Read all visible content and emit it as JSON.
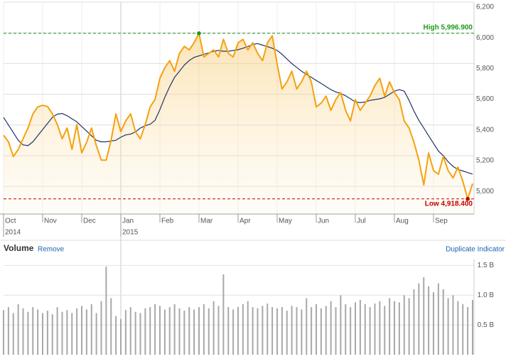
{
  "chart_data": [
    {
      "type": "line",
      "categories": [
        "Oct",
        null,
        null,
        null,
        null,
        null,
        null,
        null,
        "Nov",
        null,
        null,
        null,
        null,
        null,
        null,
        null,
        "Dec",
        null,
        null,
        null,
        null,
        null,
        null,
        null,
        "Jan",
        null,
        null,
        null,
        null,
        null,
        null,
        null,
        "Feb",
        null,
        null,
        null,
        null,
        null,
        null,
        null,
        "Mar",
        null,
        null,
        null,
        null,
        null,
        null,
        null,
        "Apr",
        null,
        null,
        null,
        null,
        null,
        null,
        null,
        "May",
        null,
        null,
        null,
        null,
        null,
        null,
        null,
        "Jun",
        null,
        null,
        null,
        null,
        null,
        null,
        null,
        "Jul",
        null,
        null,
        null,
        null,
        null,
        null,
        null,
        "Aug",
        null,
        null,
        null,
        null,
        null,
        null,
        null,
        "Sep",
        null,
        null,
        null,
        null,
        null,
        null,
        null,
        null
      ],
      "year_labels": [
        "2014",
        null,
        null,
        null,
        null,
        null,
        null,
        null,
        null,
        null,
        null,
        null,
        null,
        null,
        null,
        null,
        null,
        null,
        null,
        null,
        null,
        null,
        null,
        null,
        "2015",
        null,
        null,
        null,
        null,
        null,
        null,
        null,
        null,
        null,
        null,
        null,
        null,
        null,
        null,
        null,
        null,
        null,
        null,
        null,
        null,
        null,
        null,
        null,
        null,
        null,
        null,
        null,
        null,
        null,
        null,
        null,
        null,
        null,
        null,
        null,
        null,
        null,
        null,
        null,
        null,
        null,
        null,
        null,
        null,
        null,
        null,
        null,
        null,
        null,
        null,
        null,
        null,
        null,
        null,
        null,
        null,
        null,
        null,
        null,
        null,
        null,
        null,
        null,
        null,
        null,
        null,
        null,
        null,
        null,
        null,
        null,
        null
      ],
      "series": [
        {
          "color": "#f5a20f",
          "values": [
            5333,
            5290,
            5194,
            5240,
            5310,
            5380,
            5472,
            5518,
            5528,
            5520,
            5472,
            5403,
            5310,
            5380,
            5241,
            5403,
            5218,
            5287,
            5380,
            5264,
            5171,
            5171,
            5300,
            5472,
            5356,
            5426,
            5472,
            5356,
            5310,
            5403,
            5518,
            5565,
            5704,
            5773,
            5819,
            5750,
            5866,
            5912,
            5889,
            5935,
            5997,
            5843,
            5866,
            5889,
            5843,
            5958,
            5866,
            5843,
            5935,
            5958,
            5889,
            5935,
            5866,
            5819,
            5935,
            5981,
            5796,
            5634,
            5681,
            5750,
            5634,
            5681,
            5750,
            5681,
            5518,
            5542,
            5588,
            5495,
            5565,
            5611,
            5495,
            5426,
            5565,
            5495,
            5542,
            5588,
            5657,
            5704,
            5588,
            5681,
            5611,
            5565,
            5426,
            5380,
            5287,
            5171,
            5009,
            5218,
            5102,
            5079,
            5194,
            5102,
            5055,
            5125,
            5032,
            4918,
            5018
          ]
        },
        {
          "color": "#1f3566",
          "values": [
            5449,
            5400,
            5350,
            5300,
            5270,
            5265,
            5290,
            5330,
            5370,
            5410,
            5450,
            5470,
            5475,
            5460,
            5440,
            5420,
            5390,
            5360,
            5330,
            5300,
            5290,
            5290,
            5295,
            5300,
            5320,
            5335,
            5340,
            5355,
            5380,
            5395,
            5405,
            5430,
            5500,
            5580,
            5650,
            5710,
            5750,
            5790,
            5820,
            5840,
            5850,
            5860,
            5870,
            5880,
            5885,
            5880,
            5880,
            5885,
            5890,
            5900,
            5910,
            5925,
            5930,
            5920,
            5910,
            5900,
            5885,
            5860,
            5830,
            5800,
            5775,
            5750,
            5730,
            5710,
            5690,
            5670,
            5650,
            5630,
            5615,
            5605,
            5590,
            5570,
            5550,
            5545,
            5550,
            5560,
            5565,
            5570,
            5580,
            5600,
            5620,
            5630,
            5620,
            5560,
            5490,
            5430,
            5380,
            5330,
            5280,
            5230,
            5200,
            5160,
            5130,
            5110,
            5100,
            5090,
            5080
          ]
        }
      ],
      "ylim": [
        4820,
        6200
      ],
      "yticks": [
        {
          "value": 5000,
          "label": "5,000"
        },
        {
          "value": 5200,
          "label": "5,200"
        },
        {
          "value": 5400,
          "label": "5,400"
        },
        {
          "value": 5600,
          "label": "5,600"
        },
        {
          "value": 5800,
          "label": "5,800"
        },
        {
          "value": 6000,
          "label": "6,000"
        },
        {
          "value": 6200,
          "label": "6,200"
        }
      ],
      "high": {
        "value": 5996.9,
        "label": "High 5,996.900",
        "color": "#1a9b1a"
      },
      "low": {
        "value": 4918.4,
        "label": "Low 4,918.400",
        "color": "#c00000"
      },
      "grid": true
    },
    {
      "type": "bar",
      "title": "Volume",
      "actions": [
        "Remove",
        "Duplicate Indicator"
      ],
      "color": "#a8a8a8",
      "values": [
        0.75,
        0.8,
        0.7,
        0.85,
        0.78,
        0.72,
        0.8,
        0.76,
        0.7,
        0.74,
        0.68,
        0.8,
        0.72,
        0.75,
        0.7,
        0.78,
        0.82,
        0.76,
        0.85,
        0.7,
        0.9,
        1.48,
        0.95,
        0.65,
        0.6,
        0.75,
        0.8,
        0.72,
        0.7,
        0.78,
        0.8,
        0.85,
        0.82,
        0.76,
        0.8,
        0.85,
        0.78,
        0.74,
        0.8,
        0.76,
        0.8,
        0.85,
        0.78,
        0.9,
        0.82,
        1.35,
        0.8,
        0.76,
        0.8,
        0.85,
        0.9,
        0.8,
        0.78,
        0.82,
        0.86,
        0.8,
        0.78,
        0.8,
        0.74,
        0.82,
        0.8,
        0.76,
        0.95,
        0.8,
        0.85,
        0.78,
        0.82,
        0.9,
        0.8,
        1.0,
        0.85,
        0.8,
        0.88,
        0.92,
        0.85,
        0.8,
        0.86,
        0.9,
        0.82,
        0.95,
        0.9,
        0.88,
        1.0,
        0.95,
        1.1,
        1.2,
        1.3,
        1.15,
        1.05,
        1.2,
        1.1,
        0.95,
        1.0,
        0.9,
        0.85,
        0.8,
        0.92
      ],
      "ylim": [
        0,
        1.6
      ],
      "yticks": [
        {
          "value": 0.5,
          "label": "0.5 B"
        },
        {
          "value": 1.0,
          "label": "1.0 B"
        },
        {
          "value": 1.5,
          "label": "1.5 B"
        }
      ],
      "grid": true
    }
  ]
}
